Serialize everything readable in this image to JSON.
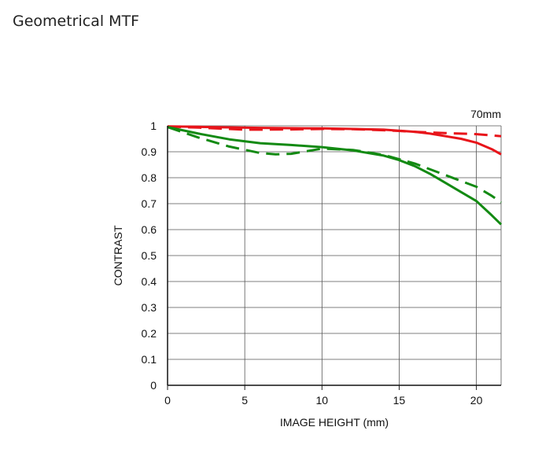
{
  "page": {
    "title": "Geometrical MTF"
  },
  "chart_data": {
    "type": "line",
    "annotation": "70mm",
    "xlabel": "IMAGE HEIGHT (mm)",
    "ylabel": "CONTRAST",
    "xlim": [
      0,
      21.6
    ],
    "ylim": [
      0,
      1
    ],
    "xticks": [
      0,
      5,
      10,
      15,
      20
    ],
    "yticks": [
      0,
      0.1,
      0.2,
      0.3,
      0.4,
      0.5,
      0.6,
      0.7,
      0.8,
      0.9,
      1
    ],
    "ytick_labels": [
      "0",
      "0.1",
      "0.2",
      "0.3",
      "0.4",
      "0.5",
      "0.6",
      "0.7",
      "0.8",
      "0.9",
      "1"
    ],
    "grid": true,
    "series": [
      {
        "color": "#e8141a",
        "dash": "solid",
        "x": [
          0,
          2,
          4,
          6,
          8,
          10,
          12,
          14,
          16,
          17,
          18,
          19,
          20,
          21,
          21.6
        ],
        "y": [
          0.998,
          0.996,
          0.994,
          0.992,
          0.991,
          0.99,
          0.988,
          0.985,
          0.977,
          0.97,
          0.96,
          0.95,
          0.935,
          0.91,
          0.89
        ]
      },
      {
        "color": "#e8141a",
        "dash": "dashed",
        "x": [
          0,
          2,
          4,
          5,
          6,
          8,
          10,
          12,
          14,
          16,
          18,
          20,
          21,
          21.6
        ],
        "y": [
          0.997,
          0.993,
          0.988,
          0.985,
          0.985,
          0.986,
          0.988,
          0.987,
          0.983,
          0.977,
          0.972,
          0.968,
          0.963,
          0.96
        ]
      },
      {
        "color": "#138a13",
        "dash": "solid",
        "x": [
          0,
          2,
          4,
          6,
          8,
          10,
          12,
          14,
          15,
          16,
          17,
          18,
          19,
          20,
          21,
          21.6
        ],
        "y": [
          0.995,
          0.97,
          0.948,
          0.933,
          0.926,
          0.918,
          0.905,
          0.885,
          0.868,
          0.845,
          0.815,
          0.78,
          0.745,
          0.71,
          0.655,
          0.62
        ]
      },
      {
        "color": "#138a13",
        "dash": "dashed",
        "x": [
          0,
          2,
          4,
          6,
          7,
          8,
          9,
          10,
          12,
          14,
          16,
          18,
          20,
          21,
          21.6
        ],
        "y": [
          0.995,
          0.955,
          0.92,
          0.895,
          0.89,
          0.892,
          0.902,
          0.912,
          0.907,
          0.888,
          0.855,
          0.81,
          0.765,
          0.73,
          0.705
        ]
      }
    ]
  }
}
